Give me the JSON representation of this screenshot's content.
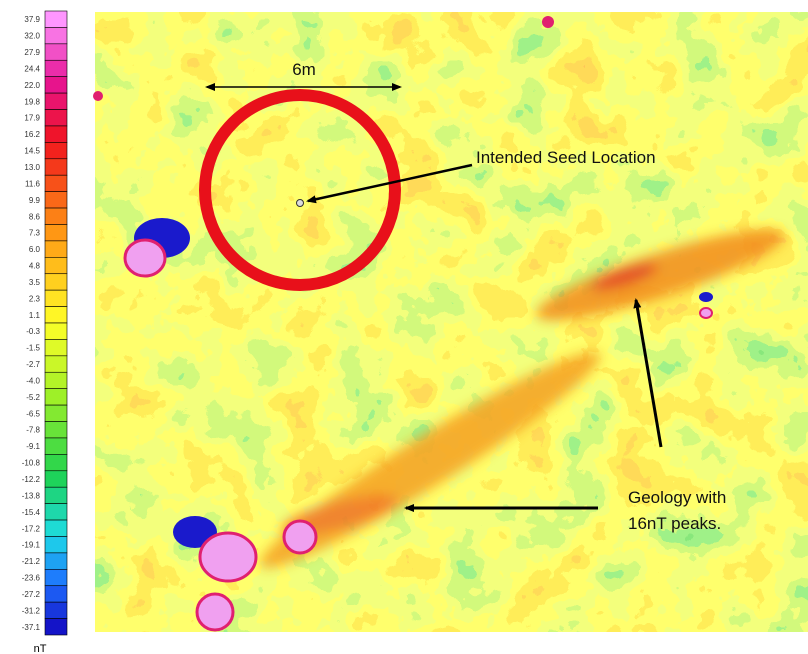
{
  "color_scale": {
    "labels": [
      "37.9",
      "32.0",
      "27.9",
      "24.4",
      "22.0",
      "19.8",
      "17.9",
      "16.2",
      "14.5",
      "13.0",
      "11.6",
      "9.9",
      "8.6",
      "7.3",
      "6.0",
      "4.8",
      "3.5",
      "2.3",
      "1.1",
      "-0.3",
      "-1.5",
      "-2.7",
      "-4.0",
      "-5.2",
      "-6.5",
      "-7.8",
      "-9.1",
      "-10.8",
      "-12.2",
      "-13.8",
      "-15.4",
      "-17.2",
      "-19.1",
      "-21.2",
      "-23.6",
      "-27.2",
      "-31.2",
      "-37.1"
    ],
    "unit": "nT"
  },
  "annotations": {
    "scale": "6m",
    "seed": "Intended Seed Location",
    "geology": [
      "Geology with",
      "16nT peaks."
    ]
  }
}
